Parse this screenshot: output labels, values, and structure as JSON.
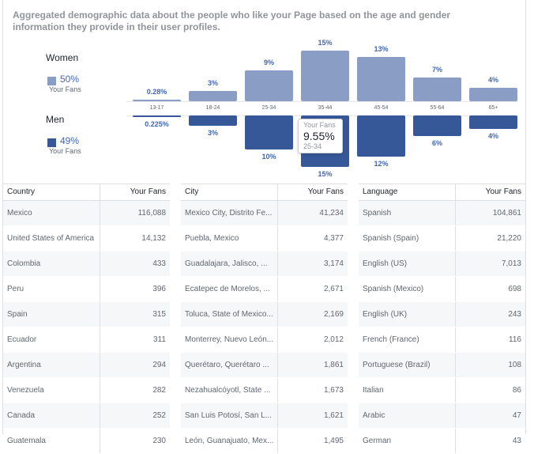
{
  "description": "Aggregated demographic data about the people who like your Page based on the age and gender information they provide in their user profiles.",
  "gender": {
    "women": {
      "label": "Women",
      "pct": "50%",
      "sub": "Your Fans"
    },
    "men": {
      "label": "Men",
      "pct": "49%",
      "sub": "Your Fans"
    }
  },
  "colors": {
    "women": "#8a9dc5",
    "men": "#365899",
    "label": "#4267b2"
  },
  "chart_data": {
    "type": "bar",
    "categories": [
      "13-17",
      "18-24",
      "25-34",
      "35-44",
      "45-54",
      "55-64",
      "65+"
    ],
    "series": [
      {
        "name": "Women",
        "values": [
          0.28,
          3,
          9,
          15,
          13,
          7,
          4
        ],
        "labels": [
          "0.28%",
          "3%",
          "9%",
          "15%",
          "13%",
          "7%",
          "4%"
        ]
      },
      {
        "name": "Men",
        "values": [
          0.225,
          3,
          10,
          15,
          12,
          6,
          4
        ],
        "labels": [
          "0.225%",
          "3%",
          "10%",
          "15%",
          "12%",
          "6%",
          "4%"
        ]
      }
    ]
  },
  "tooltip": {
    "header": "Your Fans",
    "value": "9.55%",
    "sub": "25-34"
  },
  "tables": [
    {
      "headers": [
        "Country",
        "Your Fans"
      ],
      "rows": [
        [
          "Mexico",
          "116,088"
        ],
        [
          "United States of America",
          "14,132"
        ],
        [
          "Colombia",
          "433"
        ],
        [
          "Peru",
          "396"
        ],
        [
          "Spain",
          "315"
        ],
        [
          "Ecuador",
          "311"
        ],
        [
          "Argentina",
          "294"
        ],
        [
          "Venezuela",
          "282"
        ],
        [
          "Canada",
          "252"
        ],
        [
          "Guatemala",
          "230"
        ]
      ]
    },
    {
      "headers": [
        "City",
        "Your Fans"
      ],
      "rows": [
        [
          "Mexico City, Distrito Fe...",
          "41,234"
        ],
        [
          "Puebla, Mexico",
          "4,377"
        ],
        [
          "Guadalajara, Jalisco, ...",
          "3,174"
        ],
        [
          "Ecatepec de Morelos, ...",
          "2,671"
        ],
        [
          "Toluca, State of Mexico...",
          "2,169"
        ],
        [
          "Monterrey, Nuevo León...",
          "2,012"
        ],
        [
          "Querétaro, Querétaro ...",
          "1,861"
        ],
        [
          "Nezahualcóyotl, State ...",
          "1,673"
        ],
        [
          "San Luis Potosí, San L...",
          "1,621"
        ],
        [
          "León, Guanajuato, Mex...",
          "1,495"
        ]
      ]
    },
    {
      "headers": [
        "Language",
        "Your Fans"
      ],
      "rows": [
        [
          "Spanish",
          "104,861"
        ],
        [
          "Spanish (Spain)",
          "21,220"
        ],
        [
          "English (US)",
          "7,013"
        ],
        [
          "Spanish (Mexico)",
          "698"
        ],
        [
          "English (UK)",
          "243"
        ],
        [
          "French (France)",
          "116"
        ],
        [
          "Portuguese (Brazil)",
          "108"
        ],
        [
          "Italian",
          "86"
        ],
        [
          "Arabic",
          "47"
        ],
        [
          "German",
          "43"
        ]
      ]
    }
  ]
}
